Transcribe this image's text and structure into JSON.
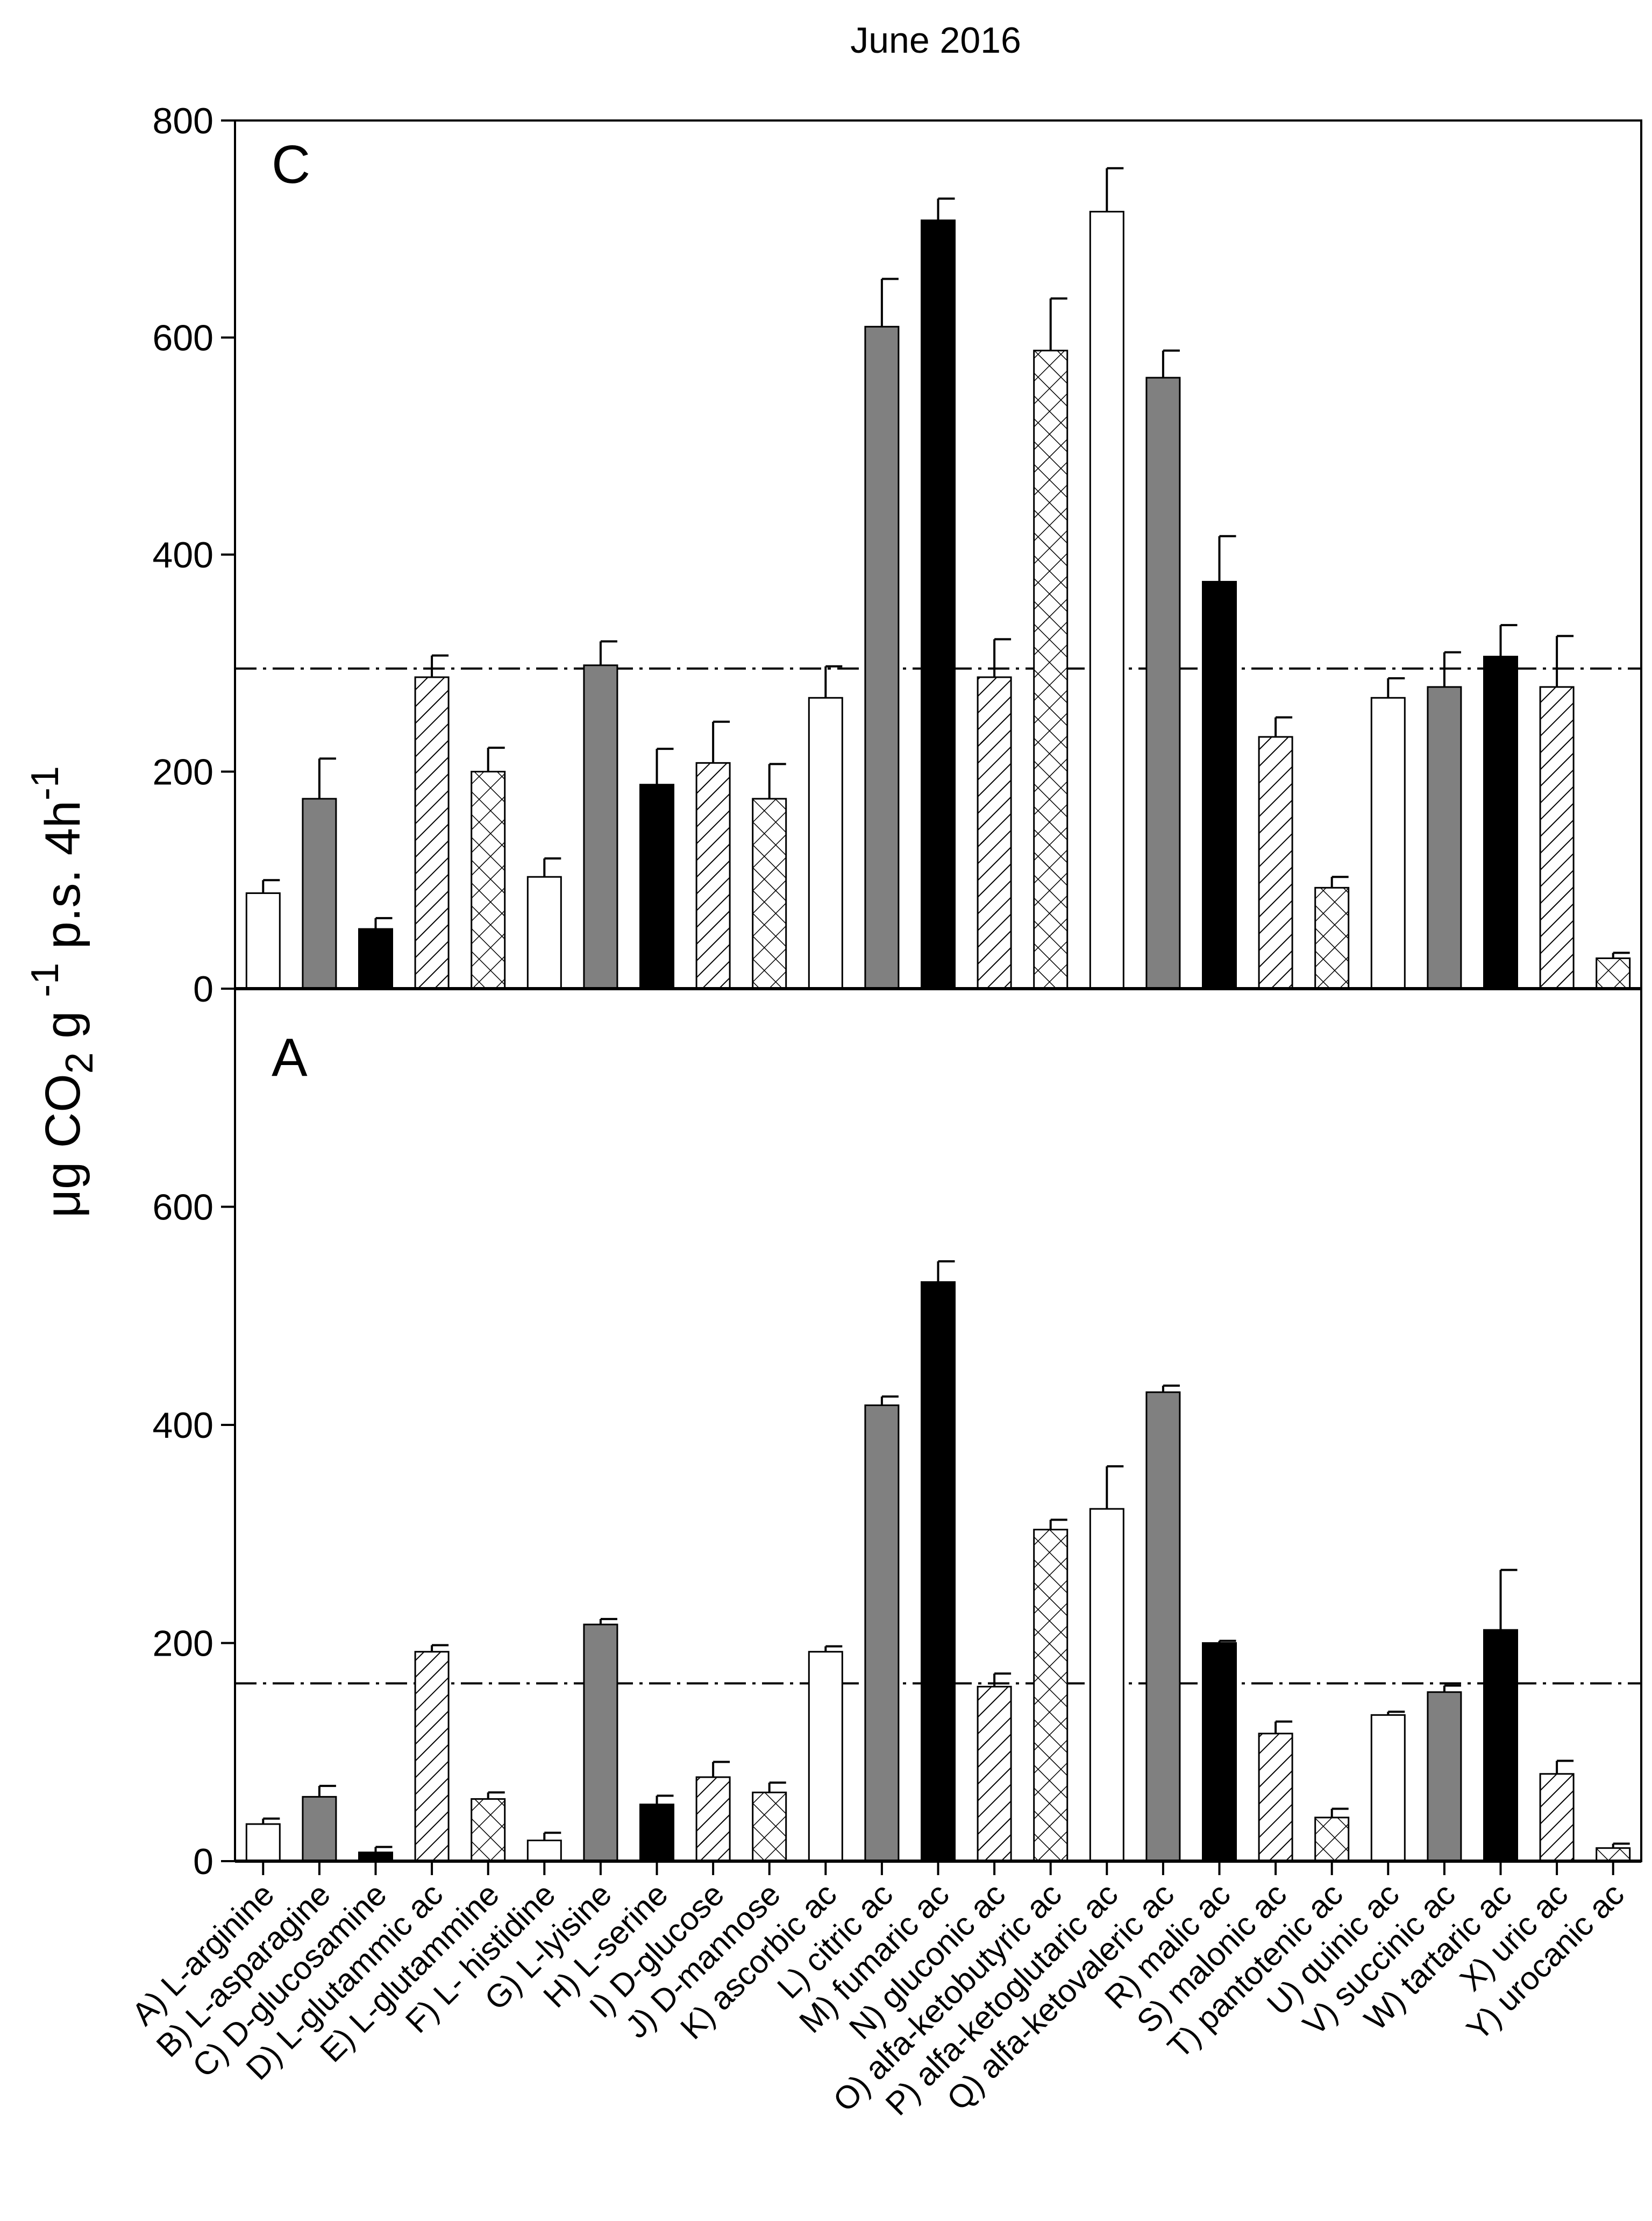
{
  "chart_data": {
    "type": "bar",
    "title": "June 2016",
    "ylabel": {
      "main": "μg CO",
      "sub": "2",
      "mid": " g ",
      "sup1": "-1",
      "rest": " p.s. 4h",
      "sup2": "-1"
    },
    "categories": [
      "A) L-arginine",
      "B) L-asparagine",
      "C) D-glucosamine",
      "D) L-glutammic ac",
      "E) L-glutammine",
      "F) L- histidine",
      "G) L-lyisine",
      "H) L-serine",
      "I) D-glucose",
      "J) D-mannose",
      "K) ascorbic ac",
      "L) citric ac",
      "M) fumaric ac",
      "N) gluconic ac",
      "O) alfa-ketobutyric ac",
      "P) alfa-ketoglutaric ac",
      "Q) alfa-ketovaleric ac",
      "R) malic ac",
      "S) malonic ac",
      "T) pantotenic ac",
      "U) quinic ac",
      "V) succinic ac",
      "W) tartaric ac",
      "X) uric ac",
      "Y) urocanic ac"
    ],
    "fills": [
      "white",
      "gray",
      "black",
      "hatch",
      "cross",
      "white",
      "gray",
      "black",
      "hatch",
      "cross",
      "white",
      "gray",
      "black",
      "hatch",
      "cross",
      "white",
      "gray",
      "black",
      "hatch",
      "cross",
      "white",
      "gray",
      "black",
      "hatch",
      "cross"
    ],
    "colors": {
      "gray": "#808080",
      "black": "#000000",
      "white": "#ffffff"
    },
    "panels": [
      {
        "label": "C",
        "ylim": [
          0,
          800
        ],
        "yticks": [
          0,
          200,
          400,
          600,
          800
        ],
        "reference_line": 295,
        "values": [
          88,
          175,
          55,
          287,
          200,
          103,
          298,
          188,
          208,
          175,
          268,
          610,
          708,
          287,
          588,
          716,
          563,
          375,
          232,
          93,
          268,
          278,
          306,
          278,
          28
        ],
        "errors": [
          12,
          37,
          10,
          20,
          22,
          17,
          22,
          33,
          38,
          32,
          29,
          44,
          20,
          35,
          48,
          40,
          25,
          42,
          18,
          10,
          18,
          32,
          29,
          47,
          5
        ]
      },
      {
        "label": "A",
        "ylim": [
          0,
          800
        ],
        "yticks": [
          0,
          200,
          400,
          600
        ],
        "reference_line": 163,
        "values": [
          34,
          59,
          8,
          192,
          57,
          19,
          217,
          52,
          77,
          63,
          192,
          418,
          531,
          160,
          304,
          323,
          430,
          200,
          117,
          40,
          134,
          155,
          212,
          80,
          12
        ],
        "errors": [
          5,
          10,
          5,
          6,
          6,
          7,
          5,
          8,
          14,
          9,
          5,
          8,
          19,
          12,
          9,
          39,
          6,
          2,
          11,
          8,
          3,
          6,
          55,
          12,
          4
        ]
      }
    ]
  }
}
